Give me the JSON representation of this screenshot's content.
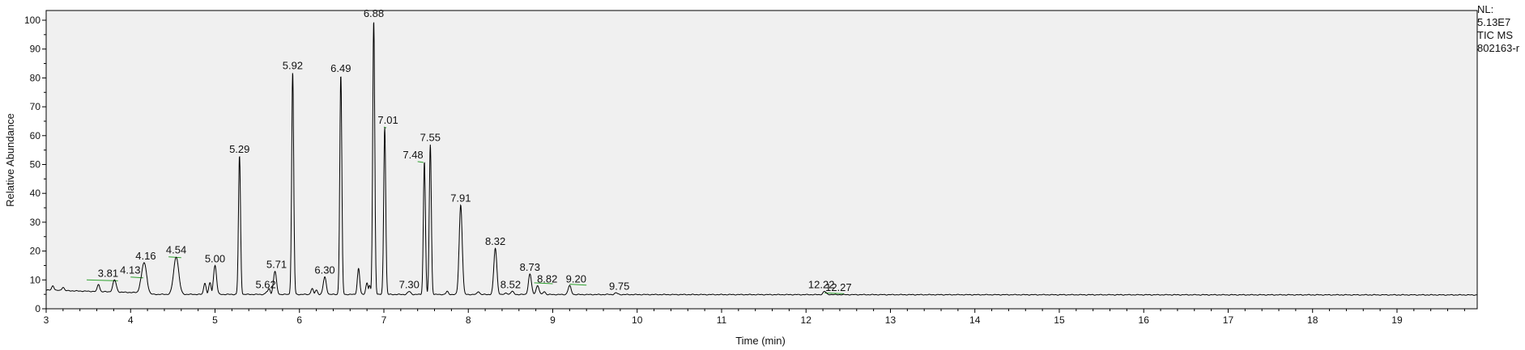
{
  "chart_data": {
    "type": "line",
    "title": "",
    "xlabel": "Time (min)",
    "ylabel": "Relative Abundance",
    "xlim": [
      3,
      19.95
    ],
    "ylim": [
      0,
      100
    ],
    "xticks": [
      3,
      4,
      5,
      6,
      7,
      8,
      9,
      10,
      11,
      12,
      13,
      14,
      15,
      16,
      17,
      18,
      19
    ],
    "yticks": [
      0,
      10,
      20,
      30,
      40,
      50,
      60,
      70,
      80,
      90,
      100
    ],
    "grid": false,
    "background_color": "#f0f0f0",
    "line_color": "#000000",
    "integration_color": "#2ca02c",
    "peaks": [
      {
        "rt": 3.81,
        "label": "3.81",
        "height": 10
      },
      {
        "rt": 4.13,
        "label": "4.13",
        "height": 11
      },
      {
        "rt": 4.16,
        "label": "4.16",
        "height": 16
      },
      {
        "rt": 4.54,
        "label": "4.54",
        "height": 18
      },
      {
        "rt": 5.0,
        "label": "5.00",
        "height": 15
      },
      {
        "rt": 5.29,
        "label": "5.29",
        "height": 53
      },
      {
        "rt": 5.62,
        "label": "5.62",
        "height": 6
      },
      {
        "rt": 5.71,
        "label": "5.71",
        "height": 13
      },
      {
        "rt": 5.92,
        "label": "5.92",
        "height": 82
      },
      {
        "rt": 6.3,
        "label": "6.30",
        "height": 11
      },
      {
        "rt": 6.49,
        "label": "6.49",
        "height": 81
      },
      {
        "rt": 6.88,
        "label": "6.88",
        "height": 100
      },
      {
        "rt": 7.01,
        "label": "7.01",
        "height": 63
      },
      {
        "rt": 7.3,
        "label": "7.30",
        "height": 6
      },
      {
        "rt": 7.48,
        "label": "7.48",
        "height": 51
      },
      {
        "rt": 7.55,
        "label": "7.55",
        "height": 57
      },
      {
        "rt": 7.91,
        "label": "7.91",
        "height": 36
      },
      {
        "rt": 8.32,
        "label": "8.32",
        "height": 21
      },
      {
        "rt": 8.52,
        "label": "8.52",
        "height": 6
      },
      {
        "rt": 8.73,
        "label": "8.73",
        "height": 12
      },
      {
        "rt": 8.82,
        "label": "8.82",
        "height": 8
      },
      {
        "rt": 9.2,
        "label": "9.20",
        "height": 8
      },
      {
        "rt": 9.75,
        "label": "9.75",
        "height": 5.5
      },
      {
        "rt": 12.22,
        "label": "12.22",
        "height": 6
      },
      {
        "rt": 12.27,
        "label": "12.27",
        "height": 5
      }
    ],
    "minor_peaks": [
      {
        "rt": 3.08,
        "height": 8
      },
      {
        "rt": 3.2,
        "height": 7.5
      },
      {
        "rt": 3.62,
        "height": 8.5
      },
      {
        "rt": 4.88,
        "height": 9
      },
      {
        "rt": 4.94,
        "height": 9
      },
      {
        "rt": 5.64,
        "height": 7
      },
      {
        "rt": 6.15,
        "height": 7
      },
      {
        "rt": 6.2,
        "height": 6.5
      },
      {
        "rt": 6.7,
        "height": 14
      },
      {
        "rt": 6.8,
        "height": 9
      },
      {
        "rt": 6.83,
        "height": 8
      },
      {
        "rt": 7.75,
        "height": 6
      },
      {
        "rt": 8.12,
        "height": 6
      },
      {
        "rt": 8.45,
        "height": 5.5
      },
      {
        "rt": 8.9,
        "height": 6
      },
      {
        "rt": 9.65,
        "height": 5
      }
    ],
    "meta_text": [
      "NL:",
      "5.13E7",
      "TIC  MS",
      "802163-r"
    ]
  }
}
